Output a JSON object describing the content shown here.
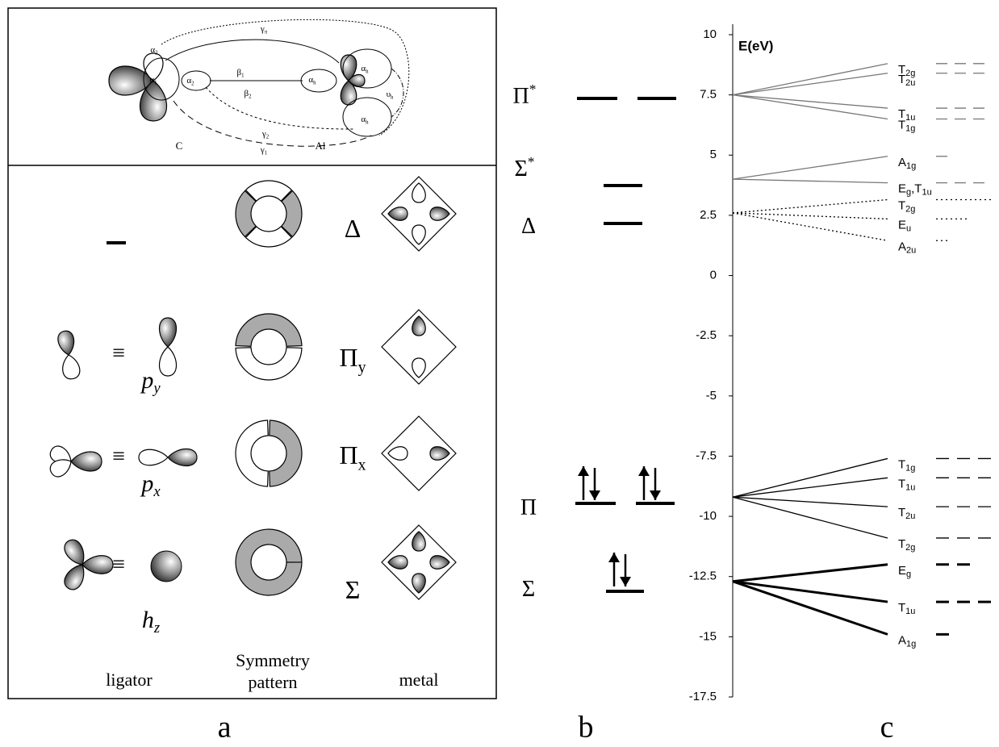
{
  "panel_a": {
    "top": {
      "labels": [
        {
          "t": "α",
          "sub": "2"
        },
        {
          "t": "γ",
          "sub": "π"
        },
        {
          "t": "β",
          "sub": "1"
        },
        {
          "t": "α",
          "sub": "1"
        },
        {
          "t": "α",
          "sub": "2"
        },
        {
          "t": "β",
          "sub": "2"
        },
        {
          "t": "α",
          "sub": "h"
        },
        {
          "t": "α",
          "sub": "h"
        },
        {
          "t": "υ",
          "sub": "h"
        },
        {
          "t": "α",
          "sub": "h"
        },
        {
          "t": "γ",
          "sub": "2"
        },
        {
          "t": "γ",
          "sub": "1"
        }
      ],
      "atoms": [
        "C",
        "Al"
      ]
    },
    "rows": [
      {
        "symmetry": {
          "t": "Δ"
        }
      },
      {
        "ligator": {
          "t": "p",
          "sub": "y"
        },
        "equiv": "≡",
        "symmetry": {
          "t": "Π",
          "sub": "y"
        }
      },
      {
        "ligator": {
          "t": "p",
          "sub": "x"
        },
        "equiv": "≡",
        "symmetry": {
          "t": "Π",
          "sub": "x"
        }
      },
      {
        "ligator": {
          "t": "h",
          "sub": "z"
        },
        "equiv": "≡",
        "symmetry": {
          "t": "Σ"
        }
      }
    ],
    "columns": {
      "ligator": "ligator",
      "symmetry": [
        "Symmetry",
        "pattern"
      ],
      "metal": "metal"
    },
    "letter": "a"
  },
  "panel_b": {
    "levels": [
      {
        "t": "Π",
        "sup": "*"
      },
      {
        "t": "Σ",
        "sup": "*"
      },
      {
        "t": "Δ"
      },
      {
        "t": "Π"
      },
      {
        "t": "Σ"
      }
    ],
    "letter": "b"
  },
  "panel_c": {
    "axis_label": "E(eV)",
    "ylim": [
      -17.5,
      10
    ],
    "yticks": [
      10,
      7.5,
      5,
      2.5,
      0,
      -2.5,
      -5,
      -7.5,
      -10,
      -12.5,
      -15,
      -17.5
    ],
    "groups": [
      {
        "origin": 7.5,
        "style": "gray",
        "levels": [
          {
            "value": 8.8,
            "label": [
              {
                "t": "T",
                "sub": "2g"
              }
            ]
          },
          {
            "value": 8.4,
            "label": [
              {
                "t": "T",
                "sub": "2u"
              }
            ]
          },
          {
            "value": 6.95,
            "label": [
              {
                "t": "T",
                "sub": "1u"
              }
            ]
          },
          {
            "value": 6.5,
            "label": [
              {
                "t": "T",
                "sub": "1g"
              }
            ]
          }
        ]
      },
      {
        "origin": 4,
        "style": "gray",
        "levels": [
          {
            "value": 4.95,
            "label": [
              {
                "t": "A",
                "sub": "1g"
              }
            ]
          },
          {
            "value": 3.85,
            "label": [
              {
                "t": "E",
                "sub": "g"
              },
              {
                "t": ",T",
                "sub": "1u"
              }
            ]
          }
        ]
      },
      {
        "origin": 2.6,
        "style": "dotted",
        "levels": [
          {
            "value": 3.15,
            "label": [
              {
                "t": "T",
                "sub": "2g"
              }
            ]
          },
          {
            "value": 2.35,
            "label": [
              {
                "t": "E",
                "sub": "u"
              }
            ]
          },
          {
            "value": 1.45,
            "label": [
              {
                "t": "A",
                "sub": "2u"
              }
            ]
          }
        ]
      },
      {
        "origin": -9.2,
        "style": "thin",
        "levels": [
          {
            "value": -7.6,
            "label": [
              {
                "t": "T",
                "sub": "1g"
              }
            ]
          },
          {
            "value": -8.4,
            "label": [
              {
                "t": "T",
                "sub": "1u"
              }
            ]
          },
          {
            "value": -9.6,
            "label": [
              {
                "t": "T",
                "sub": "2u"
              }
            ]
          },
          {
            "value": -10.9,
            "label": [
              {
                "t": "T",
                "sub": "2g"
              }
            ]
          }
        ]
      },
      {
        "origin": -12.7,
        "style": "bold",
        "levels": [
          {
            "value": -12.0,
            "label": [
              {
                "t": "E",
                "sub": "g"
              }
            ]
          },
          {
            "value": -13.55,
            "label": [
              {
                "t": "T",
                "sub": "1u"
              }
            ]
          },
          {
            "value": -14.9,
            "label": [
              {
                "t": "A",
                "sub": "1g"
              }
            ]
          }
        ]
      }
    ],
    "letter": "c"
  }
}
